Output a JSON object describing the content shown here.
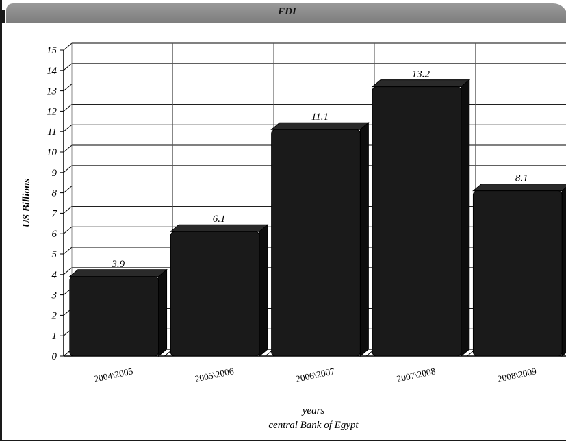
{
  "chart_data": {
    "type": "bar",
    "title": "FDI",
    "xlabel": "years",
    "source": "central Bank of Egypt",
    "ylabel": "US Billions",
    "categories": [
      "2004\\2005",
      "2005\\2006",
      "2006\\2007",
      "2007\\2008",
      "2008\\2009"
    ],
    "values": [
      3.9,
      6.1,
      11.1,
      13.2,
      8.1
    ],
    "value_labels": [
      "3.9",
      "6.1",
      "11.1",
      "13.2",
      "8.1"
    ],
    "ylim": [
      0,
      15
    ],
    "yticks": [
      0,
      1,
      2,
      3,
      4,
      5,
      6,
      7,
      8,
      9,
      10,
      11,
      12,
      13,
      14,
      15
    ],
    "grid": true,
    "bar_color": "#1a1a1a",
    "style": "3d"
  }
}
